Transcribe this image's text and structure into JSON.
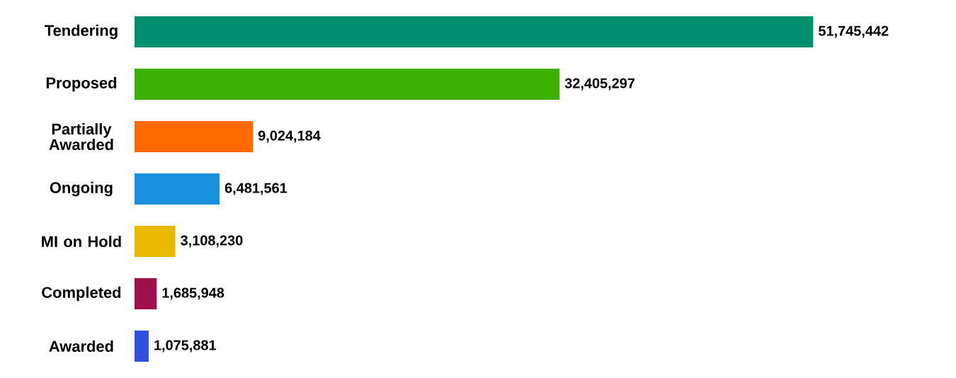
{
  "chart_data": {
    "type": "bar",
    "orientation": "horizontal",
    "categories": [
      "Tendering",
      "Proposed",
      "Partially Awarded",
      "Ongoing",
      "MI on Hold",
      "Completed",
      "Awarded"
    ],
    "values": [
      51745442,
      32405297,
      9024184,
      6481561,
      3108230,
      1685948,
      1075881
    ],
    "value_labels": [
      "51,745,442",
      "32,405,297",
      "9,024,184",
      "6,481,561",
      "3,108,230",
      "1,685,948",
      "1,075,881"
    ],
    "colors": [
      "#00906e",
      "#3cb000",
      "#ff6a00",
      "#1a8fe0",
      "#e8b800",
      "#a0104a",
      "#3050e0"
    ]
  }
}
